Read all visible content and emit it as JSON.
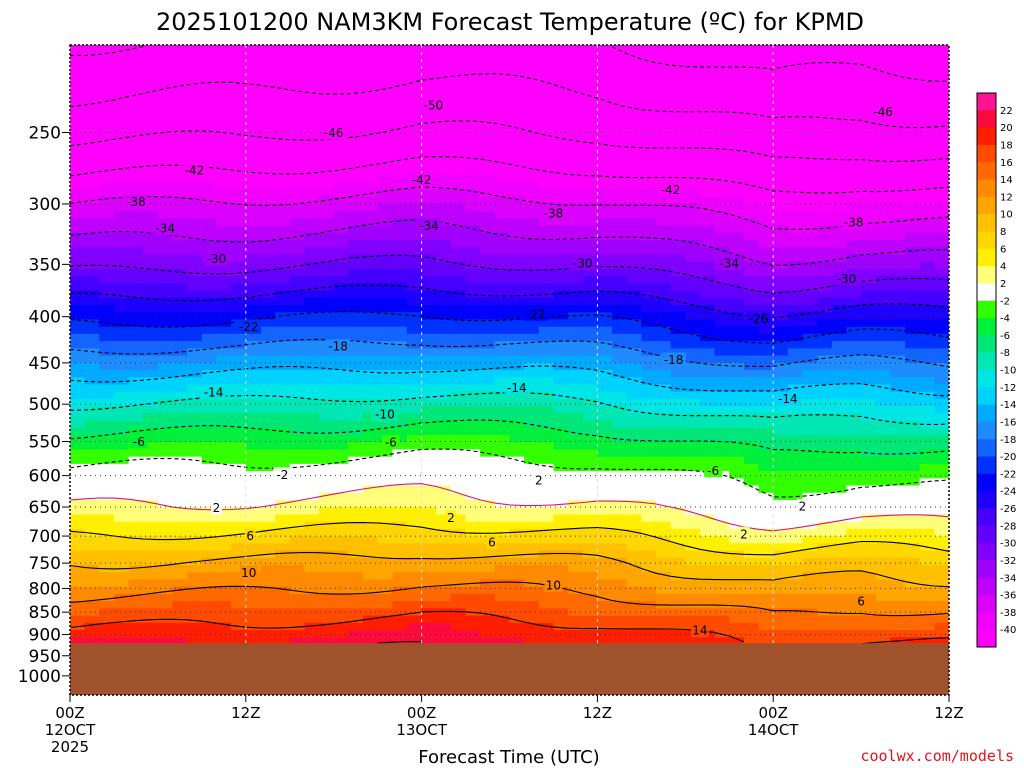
{
  "chart_data": {
    "type": "heatmap",
    "title": "2025101200 NAM3KM Forecast Temperature (ºC) for KPMD",
    "xlabel": "Forecast Time (UTC)",
    "ylabel": "",
    "credit": "coolwx.com/models",
    "xlim_hours": [
      0,
      60
    ],
    "y_axis": {
      "unit": "hPa",
      "range": [
        200,
        1050
      ],
      "log_scale": true
    },
    "x_ticks": [
      {
        "hours": 0,
        "lines": [
          "00Z",
          "12OCT",
          "2025"
        ]
      },
      {
        "hours": 12,
        "lines": [
          "12Z"
        ]
      },
      {
        "hours": 24,
        "lines": [
          "00Z",
          "13OCT"
        ]
      },
      {
        "hours": 36,
        "lines": [
          "12Z"
        ]
      },
      {
        "hours": 48,
        "lines": [
          "00Z",
          "14OCT"
        ]
      },
      {
        "hours": 60,
        "lines": [
          "12Z"
        ]
      }
    ],
    "y_ticks": [
      250,
      300,
      350,
      400,
      450,
      500,
      550,
      600,
      650,
      700,
      750,
      800,
      850,
      900,
      950,
      1000
    ],
    "terrain_top_hPa": 920,
    "terrain_color": "#a0522d",
    "colorbar": {
      "labels": [
        22,
        20,
        18,
        16,
        14,
        12,
        10,
        8,
        6,
        4,
        2,
        -2,
        -4,
        -6,
        -8,
        -10,
        -12,
        -14,
        -16,
        -18,
        -20,
        -22,
        -24,
        -26,
        -28,
        -30,
        -32,
        -34,
        -36,
        -38,
        -40
      ],
      "colors": [
        "#ff1493",
        "#ff0a3c",
        "#ff1e00",
        "#ff4b00",
        "#ff6a00",
        "#ff8a00",
        "#ffa500",
        "#ffc000",
        "#ffd700",
        "#ffef00",
        "#ffff7a",
        "#ffffff",
        "#33ff00",
        "#00f03c",
        "#00e678",
        "#00e6b4",
        "#00e6e6",
        "#00d2ff",
        "#00aaff",
        "#1e8cff",
        "#1464ff",
        "#0032ff",
        "#0000ff",
        "#1e00ff",
        "#4600ff",
        "#6400ff",
        "#8200ff",
        "#a000ff",
        "#be00ff",
        "#dc00ff",
        "#f000ff",
        "#ff00ff"
      ]
    },
    "temperature_profile": {
      "pressure_hPa": [
        200,
        250,
        300,
        350,
        400,
        450,
        500,
        550,
        600,
        650,
        700,
        750,
        800,
        850,
        900,
        920
      ],
      "temp_C_start": [
        -54,
        -47,
        -38,
        -31,
        -23,
        -16,
        -10,
        -5,
        -1,
        2,
        6,
        10,
        13,
        16,
        19,
        20
      ],
      "adjust_by_hour": [
        {
          "hours": 0,
          "dT": 0
        },
        {
          "hours": 12,
          "dT": 0.5
        },
        {
          "hours": 24,
          "dT": 1.5
        },
        {
          "hours": 36,
          "dT": 0.5
        },
        {
          "hours": 48,
          "dT": -2.5
        },
        {
          "hours": 54,
          "dT": -1.5
        },
        {
          "hours": 60,
          "dT": -2
        }
      ]
    },
    "contour_labels": [
      {
        "text": "-50",
        "hours": 24.8,
        "hPa": 233
      },
      {
        "text": "-46",
        "hours": 18.0,
        "hPa": 250
      },
      {
        "text": "-46",
        "hours": 55.5,
        "hPa": 237
      },
      {
        "text": "-42",
        "hours": 8.5,
        "hPa": 275
      },
      {
        "text": "-42",
        "hours": 24.0,
        "hPa": 282
      },
      {
        "text": "-42",
        "hours": 41.0,
        "hPa": 289
      },
      {
        "text": "-38",
        "hours": 4.5,
        "hPa": 298
      },
      {
        "text": "-38",
        "hours": 33.0,
        "hPa": 307
      },
      {
        "text": "-38",
        "hours": 53.5,
        "hPa": 314
      },
      {
        "text": "-34",
        "hours": 6.5,
        "hPa": 319
      },
      {
        "text": "-34",
        "hours": 24.5,
        "hPa": 317
      },
      {
        "text": "-34",
        "hours": 45.0,
        "hPa": 349
      },
      {
        "text": "-30",
        "hours": 10.0,
        "hPa": 345
      },
      {
        "text": "-30",
        "hours": 35.0,
        "hPa": 349
      },
      {
        "text": "-30",
        "hours": 53.0,
        "hPa": 363
      },
      {
        "text": "-26",
        "hours": 47.0,
        "hPa": 402
      },
      {
        "text": "-22",
        "hours": 12.2,
        "hPa": 410
      },
      {
        "text": "-22",
        "hours": 31.8,
        "hPa": 397
      },
      {
        "text": "-18",
        "hours": 18.3,
        "hPa": 431
      },
      {
        "text": "-18",
        "hours": 41.2,
        "hPa": 446
      },
      {
        "text": "-14",
        "hours": 9.8,
        "hPa": 485
      },
      {
        "text": "-14",
        "hours": 30.5,
        "hPa": 479
      },
      {
        "text": "-14",
        "hours": 49.0,
        "hPa": 493
      },
      {
        "text": "-10",
        "hours": 21.5,
        "hPa": 513
      },
      {
        "text": "-6",
        "hours": 4.7,
        "hPa": 550
      },
      {
        "text": "-6",
        "hours": 21.9,
        "hPa": 551
      },
      {
        "text": "-6",
        "hours": 43.9,
        "hPa": 592
      },
      {
        "text": "-2",
        "hours": 14.5,
        "hPa": 598
      },
      {
        "text": "2",
        "hours": 32.0,
        "hPa": 607
      },
      {
        "text": "2",
        "hours": 50.0,
        "hPa": 648
      },
      {
        "text": "2",
        "hours": 10.0,
        "hPa": 651
      },
      {
        "text": "2",
        "hours": 26.0,
        "hPa": 668
      },
      {
        "text": "2",
        "hours": 46.0,
        "hPa": 696
      },
      {
        "text": "6",
        "hours": 12.3,
        "hPa": 699
      },
      {
        "text": "6",
        "hours": 28.8,
        "hPa": 711
      },
      {
        "text": "6",
        "hours": 54.0,
        "hPa": 826
      },
      {
        "text": "10",
        "hours": 12.2,
        "hPa": 768
      },
      {
        "text": "10",
        "hours": 33.0,
        "hPa": 793
      },
      {
        "text": "14",
        "hours": 43.0,
        "hPa": 890
      }
    ]
  }
}
